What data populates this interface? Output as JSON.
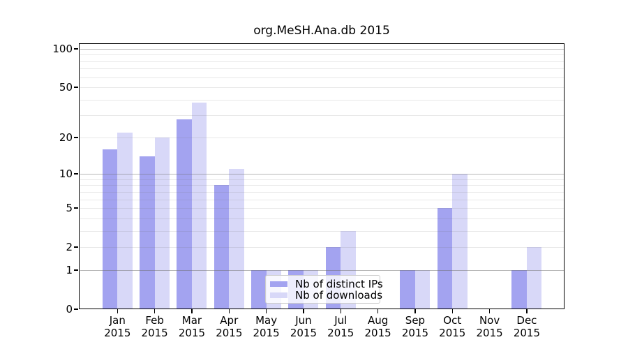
{
  "figure": {
    "title": "org.MeSH.Ana.db 2015"
  },
  "chart_data": {
    "type": "bar",
    "title": "org.MeSH.Ana.db 2015",
    "categories": [
      "Jan",
      "Feb",
      "Mar",
      "Apr",
      "May",
      "Jun",
      "Jul",
      "Aug",
      "Sep",
      "Oct",
      "Nov",
      "Dec"
    ],
    "category_year": "2015",
    "series": [
      {
        "name": "Nb of distinct IPs",
        "color": "#a3a3f0",
        "values": [
          16,
          14,
          28,
          8,
          1,
          1,
          2,
          0,
          1,
          5,
          0,
          1
        ]
      },
      {
        "name": "Nb of downloads",
        "color": "#d8d8f8",
        "values": [
          22,
          20,
          38,
          11,
          1,
          1,
          3,
          0,
          1,
          10,
          0,
          2
        ]
      }
    ],
    "xlabel": "",
    "ylabel": "",
    "yscale": "log1p",
    "ylim": [
      0,
      110
    ],
    "yticks_labeled": [
      0,
      1,
      2,
      5,
      10,
      20,
      50,
      100
    ],
    "yticks_major_grid": [
      1,
      10,
      100
    ],
    "yticks_minor_grid": [
      2,
      3,
      4,
      5,
      6,
      7,
      8,
      9,
      20,
      30,
      40,
      50,
      60,
      70,
      80,
      90
    ],
    "grid": true,
    "legend_position": "lower-center",
    "bar_color_axis": "#000000",
    "grid_major_color": "#b3b3b3",
    "grid_minor_color": "#e6e6e6"
  }
}
